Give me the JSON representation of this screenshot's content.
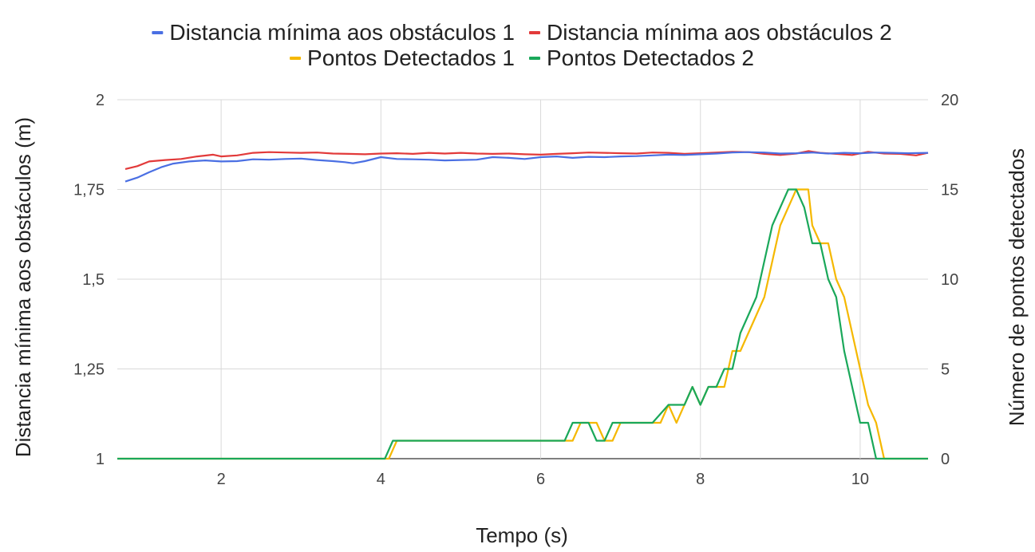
{
  "chart_data": {
    "type": "line",
    "title": "",
    "xlabel": "Tempo (s)",
    "ylabel_left": "Distancia mínima aos obstáculos (m)",
    "ylabel_right": "Número de pontos detectados",
    "xlim": [
      0.7,
      10.85
    ],
    "ylim_left": [
      1,
      2
    ],
    "ylim_right": [
      0,
      20
    ],
    "x_ticks": [
      2,
      4,
      6,
      8,
      10
    ],
    "x_tick_labels": [
      "2",
      "4",
      "6",
      "8",
      "10"
    ],
    "y_left_ticks": [
      1,
      1.25,
      1.5,
      1.75,
      2
    ],
    "y_left_tick_labels": [
      "1",
      "1,25",
      "1,5",
      "1,75",
      "2"
    ],
    "y_right_ticks": [
      0,
      5,
      10,
      15,
      20
    ],
    "y_right_tick_labels": [
      "0",
      "5",
      "10",
      "15",
      "20"
    ],
    "grid": true,
    "legend_position": "top",
    "series": [
      {
        "name": "Distancia mínima aos obstáculos 1",
        "axis": "left",
        "color": "#4a6fe3",
        "points": [
          [
            0.8,
            1.772
          ],
          [
            0.95,
            1.783
          ],
          [
            1.1,
            1.798
          ],
          [
            1.25,
            1.812
          ],
          [
            1.4,
            1.822
          ],
          [
            1.6,
            1.828
          ],
          [
            1.8,
            1.831
          ],
          [
            2.0,
            1.828
          ],
          [
            2.2,
            1.829
          ],
          [
            2.4,
            1.834
          ],
          [
            2.6,
            1.833
          ],
          [
            2.8,
            1.835
          ],
          [
            3.0,
            1.836
          ],
          [
            3.2,
            1.832
          ],
          [
            3.4,
            1.829
          ],
          [
            3.55,
            1.826
          ],
          [
            3.65,
            1.823
          ],
          [
            3.8,
            1.829
          ],
          [
            4.0,
            1.84
          ],
          [
            4.2,
            1.835
          ],
          [
            4.4,
            1.834
          ],
          [
            4.6,
            1.833
          ],
          [
            4.8,
            1.831
          ],
          [
            5.0,
            1.832
          ],
          [
            5.2,
            1.833
          ],
          [
            5.4,
            1.84
          ],
          [
            5.6,
            1.838
          ],
          [
            5.8,
            1.835
          ],
          [
            6.0,
            1.84
          ],
          [
            6.2,
            1.842
          ],
          [
            6.4,
            1.838
          ],
          [
            6.6,
            1.841
          ],
          [
            6.8,
            1.84
          ],
          [
            7.0,
            1.842
          ],
          [
            7.2,
            1.843
          ],
          [
            7.4,
            1.845
          ],
          [
            7.6,
            1.847
          ],
          [
            7.8,
            1.846
          ],
          [
            8.0,
            1.848
          ],
          [
            8.2,
            1.85
          ],
          [
            8.4,
            1.853
          ],
          [
            8.6,
            1.854
          ],
          [
            8.8,
            1.853
          ],
          [
            9.0,
            1.85
          ],
          [
            9.2,
            1.851
          ],
          [
            9.4,
            1.853
          ],
          [
            9.6,
            1.85
          ],
          [
            9.8,
            1.852
          ],
          [
            10.0,
            1.851
          ],
          [
            10.2,
            1.853
          ],
          [
            10.4,
            1.852
          ],
          [
            10.6,
            1.851
          ],
          [
            10.85,
            1.852
          ]
        ]
      },
      {
        "name": "Distancia mínima aos obstáculos 2",
        "axis": "left",
        "color": "#e23a3a",
        "points": [
          [
            0.8,
            1.807
          ],
          [
            0.95,
            1.815
          ],
          [
            1.1,
            1.828
          ],
          [
            1.3,
            1.832
          ],
          [
            1.5,
            1.835
          ],
          [
            1.7,
            1.842
          ],
          [
            1.9,
            1.847
          ],
          [
            2.0,
            1.842
          ],
          [
            2.2,
            1.845
          ],
          [
            2.4,
            1.852
          ],
          [
            2.6,
            1.854
          ],
          [
            2.8,
            1.853
          ],
          [
            3.0,
            1.852
          ],
          [
            3.2,
            1.853
          ],
          [
            3.4,
            1.85
          ],
          [
            3.6,
            1.849
          ],
          [
            3.8,
            1.848
          ],
          [
            4.0,
            1.85
          ],
          [
            4.2,
            1.851
          ],
          [
            4.4,
            1.849
          ],
          [
            4.6,
            1.852
          ],
          [
            4.8,
            1.85
          ],
          [
            5.0,
            1.852
          ],
          [
            5.2,
            1.85
          ],
          [
            5.4,
            1.849
          ],
          [
            5.6,
            1.85
          ],
          [
            5.8,
            1.848
          ],
          [
            6.0,
            1.847
          ],
          [
            6.2,
            1.849
          ],
          [
            6.4,
            1.851
          ],
          [
            6.6,
            1.853
          ],
          [
            6.8,
            1.852
          ],
          [
            7.0,
            1.851
          ],
          [
            7.2,
            1.85
          ],
          [
            7.4,
            1.853
          ],
          [
            7.6,
            1.852
          ],
          [
            7.8,
            1.849
          ],
          [
            8.0,
            1.851
          ],
          [
            8.2,
            1.853
          ],
          [
            8.4,
            1.855
          ],
          [
            8.6,
            1.854
          ],
          [
            8.8,
            1.849
          ],
          [
            9.0,
            1.846
          ],
          [
            9.2,
            1.85
          ],
          [
            9.35,
            1.857
          ],
          [
            9.5,
            1.852
          ],
          [
            9.7,
            1.849
          ],
          [
            9.9,
            1.846
          ],
          [
            10.1,
            1.855
          ],
          [
            10.3,
            1.85
          ],
          [
            10.5,
            1.849
          ],
          [
            10.7,
            1.845
          ],
          [
            10.85,
            1.852
          ]
        ]
      },
      {
        "name": "Pontos Detectados 1",
        "axis": "right",
        "color": "#f5b800",
        "points": [
          [
            0.7,
            0
          ],
          [
            4.1,
            0
          ],
          [
            4.2,
            1
          ],
          [
            6.3,
            1
          ],
          [
            6.4,
            1
          ],
          [
            6.5,
            2
          ],
          [
            6.7,
            2
          ],
          [
            6.8,
            1
          ],
          [
            6.9,
            1
          ],
          [
            7.0,
            2
          ],
          [
            7.5,
            2
          ],
          [
            7.6,
            3
          ],
          [
            7.7,
            2
          ],
          [
            7.8,
            3
          ],
          [
            7.9,
            4
          ],
          [
            8.0,
            3
          ],
          [
            8.1,
            4
          ],
          [
            8.3,
            4
          ],
          [
            8.4,
            6
          ],
          [
            8.5,
            6
          ],
          [
            8.6,
            7
          ],
          [
            8.7,
            8
          ],
          [
            8.8,
            9
          ],
          [
            8.9,
            11
          ],
          [
            9.0,
            13
          ],
          [
            9.1,
            14
          ],
          [
            9.2,
            15
          ],
          [
            9.35,
            15
          ],
          [
            9.4,
            13
          ],
          [
            9.5,
            12
          ],
          [
            9.6,
            12
          ],
          [
            9.7,
            10
          ],
          [
            9.8,
            9
          ],
          [
            9.9,
            7
          ],
          [
            10.0,
            5
          ],
          [
            10.1,
            3
          ],
          [
            10.2,
            2
          ],
          [
            10.25,
            1
          ],
          [
            10.3,
            0
          ],
          [
            10.85,
            0
          ]
        ]
      },
      {
        "name": "Pontos Detectados 2",
        "axis": "right",
        "color": "#1aa85a",
        "points": [
          [
            0.7,
            0
          ],
          [
            4.05,
            0
          ],
          [
            4.15,
            1
          ],
          [
            6.3,
            1
          ],
          [
            6.4,
            2
          ],
          [
            6.6,
            2
          ],
          [
            6.7,
            1
          ],
          [
            6.8,
            1
          ],
          [
            6.9,
            2
          ],
          [
            7.4,
            2
          ],
          [
            7.6,
            3
          ],
          [
            7.8,
            3
          ],
          [
            7.9,
            4
          ],
          [
            8.0,
            3
          ],
          [
            8.1,
            4
          ],
          [
            8.2,
            4
          ],
          [
            8.3,
            5
          ],
          [
            8.4,
            5
          ],
          [
            8.5,
            7
          ],
          [
            8.6,
            8
          ],
          [
            8.7,
            9
          ],
          [
            8.8,
            11
          ],
          [
            8.9,
            13
          ],
          [
            9.0,
            14
          ],
          [
            9.1,
            15
          ],
          [
            9.2,
            15
          ],
          [
            9.3,
            14
          ],
          [
            9.4,
            12
          ],
          [
            9.5,
            12
          ],
          [
            9.6,
            10
          ],
          [
            9.7,
            9
          ],
          [
            9.8,
            6
          ],
          [
            9.9,
            4
          ],
          [
            10.0,
            2
          ],
          [
            10.1,
            2
          ],
          [
            10.2,
            0
          ],
          [
            10.85,
            0
          ]
        ]
      }
    ]
  }
}
